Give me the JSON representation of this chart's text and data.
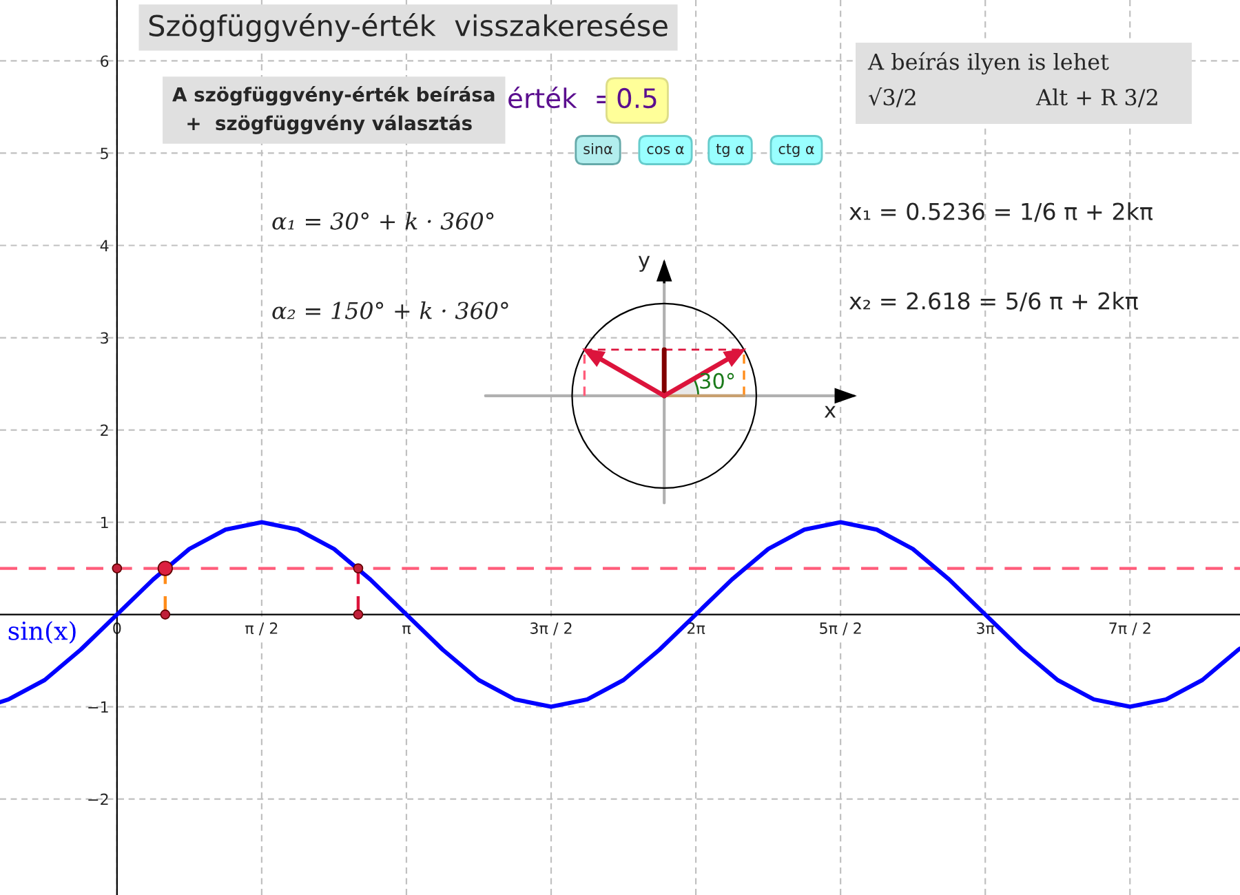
{
  "chart_data": {
    "type": "line",
    "title": "Szögfüggvény-érték  visszakeresése",
    "xlim": [
      -1.27,
      12.19
    ],
    "ylim": [
      -3.04,
      6.66
    ],
    "xticks": [
      {
        "value": 0,
        "label": "0"
      },
      {
        "value": 1.5708,
        "label": "π / 2"
      },
      {
        "value": 3.1416,
        "label": "π"
      },
      {
        "value": 4.7124,
        "label": "3π / 2"
      },
      {
        "value": 6.2832,
        "label": "2π"
      },
      {
        "value": 7.854,
        "label": "5π / 2"
      },
      {
        "value": 9.4248,
        "label": "3π"
      },
      {
        "value": 10.9956,
        "label": "7π / 2"
      }
    ],
    "yticks": [
      {
        "value": -2,
        "label": "−2"
      },
      {
        "value": -1,
        "label": "−1"
      },
      1,
      2,
      3,
      4,
      5,
      6
    ],
    "grid": true,
    "legend": false,
    "series": [
      {
        "name": "sin(x)",
        "color": "#0000ff",
        "x": [
          -1.27,
          -1.178,
          -0.785,
          -0.393,
          0,
          0.393,
          0.785,
          1.178,
          1.571,
          1.963,
          2.356,
          2.749,
          3.142,
          3.534,
          3.927,
          4.32,
          4.712,
          5.105,
          5.498,
          5.89,
          6.283,
          6.676,
          7.069,
          7.461,
          7.854,
          8.247,
          8.639,
          9.032,
          9.425,
          9.817,
          10.21,
          10.603,
          10.996,
          11.388,
          11.781,
          12.174,
          12.19
        ],
        "values": [
          -0.95,
          -0.92,
          -0.71,
          -0.38,
          0,
          0.38,
          0.71,
          0.92,
          1,
          0.92,
          0.71,
          0.38,
          0,
          -0.38,
          -0.71,
          -0.92,
          -1,
          -0.92,
          -0.71,
          -0.38,
          0,
          0.38,
          0.71,
          0.92,
          1,
          0.92,
          0.71,
          0.38,
          0,
          -0.38,
          -0.71,
          -0.92,
          -1,
          -0.92,
          -0.71,
          -0.38,
          -0.37
        ]
      },
      {
        "type": "line",
        "color": "#ff8c1a",
        "line_style": "dashed",
        "x": [
          0.5236,
          0.5236
        ],
        "values": [
          0,
          0.5
        ]
      },
      {
        "type": "line",
        "color": "#dc143c",
        "line_style": "dashed",
        "x": [
          2.618,
          2.618
        ],
        "values": [
          0,
          0.5
        ]
      },
      {
        "type": "scatter",
        "color": "#c0203a",
        "marker": "circle",
        "x": [
          0,
          2.618,
          0.5236,
          2.618
        ],
        "values": [
          0.5,
          0.5,
          0,
          0
        ]
      },
      {
        "type": "scatter",
        "color": "#dc2040",
        "marker": "circle",
        "x": [
          0.5236
        ],
        "values": [
          0.5
        ]
      }
    ],
    "ref_lines": [
      {
        "axis": "y",
        "value": 0.5,
        "color": "#ff5c7a",
        "line_style": "dashed"
      }
    ],
    "annotations": [
      "A szögfüggvény-érték beírása\n  +  szögfüggvény választás",
      "érték  =",
      "0.5",
      "sinα",
      "cos α",
      "tg α",
      "ctg α",
      "A beírás ilyen is lehet",
      "√3/2",
      "Alt + R 3/2",
      "α₁ = 30° + k · 360°",
      "α₂ = 150° + k · 360°",
      "x₁ = 0.5236 = 1/6 π + 2kπ",
      "x₂ = 2.618 = 5/6 π + 2kπ",
      "y",
      "x",
      "30°"
    ]
  }
}
